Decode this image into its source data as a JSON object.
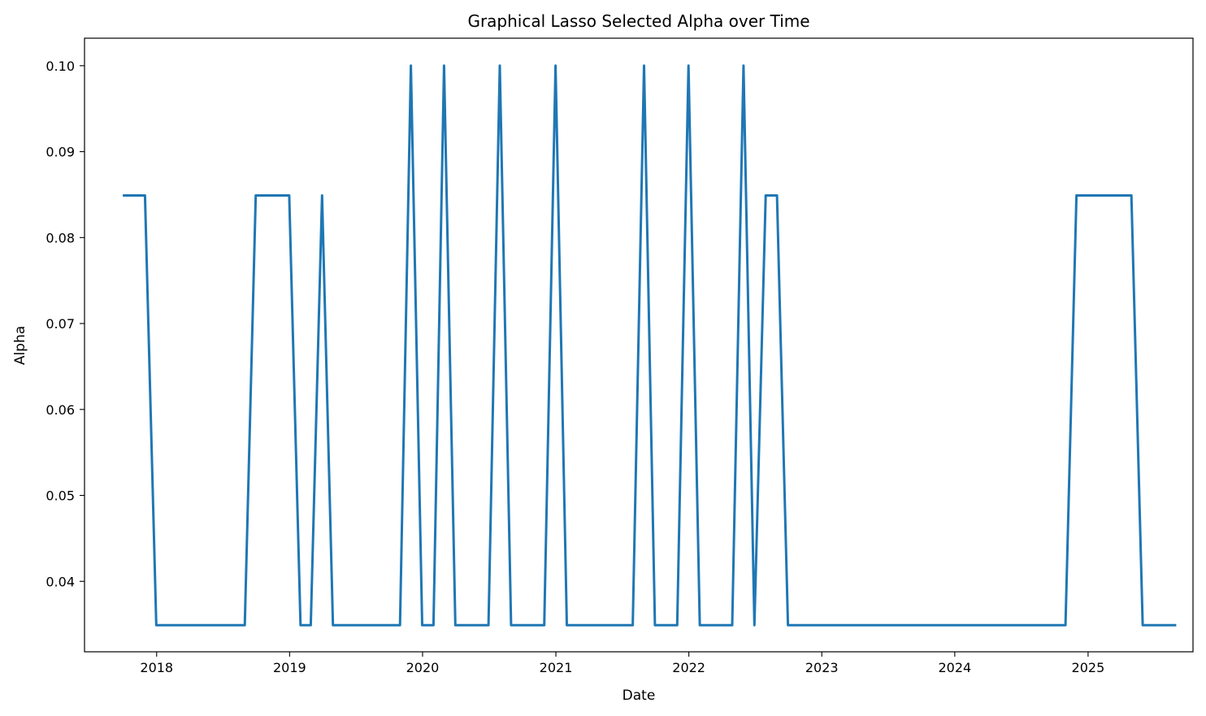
{
  "chart_data": {
    "type": "line",
    "title": "Graphical Lasso Selected Alpha over Time",
    "xlabel": "Date",
    "ylabel": "Alpha",
    "xlim": [
      "2017-06-17",
      "2025-10-16"
    ],
    "ylim": [
      0.0318,
      0.1032
    ],
    "x_ticks": [
      "2018",
      "2019",
      "2020",
      "2021",
      "2022",
      "2023",
      "2024",
      "2025"
    ],
    "y_ticks": [
      "0.04",
      "0.05",
      "0.06",
      "0.07",
      "0.08",
      "0.09",
      "0.10"
    ],
    "grid": false,
    "legend": "none",
    "series_color": "#1f77b4",
    "series": [
      {
        "x": [
          "2017-09-30",
          "2017-10-31",
          "2017-11-30",
          "2017-12-31",
          "2018-01-31",
          "2018-02-28",
          "2018-03-31",
          "2018-04-30",
          "2018-05-31",
          "2018-06-30",
          "2018-07-31",
          "2018-08-31",
          "2018-09-30",
          "2018-10-31",
          "2018-11-30",
          "2018-12-31",
          "2019-01-31",
          "2019-02-28",
          "2019-03-31",
          "2019-04-30",
          "2019-05-31",
          "2019-06-30",
          "2019-07-31",
          "2019-08-31",
          "2019-09-30",
          "2019-10-31",
          "2019-11-30",
          "2019-12-31",
          "2020-01-31",
          "2020-02-29",
          "2020-03-31",
          "2020-04-30",
          "2020-05-31",
          "2020-06-30",
          "2020-07-31",
          "2020-08-31",
          "2020-09-30",
          "2020-10-31",
          "2020-11-30",
          "2020-12-31",
          "2021-01-31",
          "2021-02-28",
          "2021-03-31",
          "2021-04-30",
          "2021-05-31",
          "2021-06-30",
          "2021-07-31",
          "2021-08-31",
          "2021-09-30",
          "2021-10-31",
          "2021-11-30",
          "2021-12-31",
          "2022-01-31",
          "2022-02-28",
          "2022-03-31",
          "2022-04-30",
          "2022-05-31",
          "2022-06-30",
          "2022-07-31",
          "2022-08-31",
          "2022-09-30",
          "2022-10-31",
          "2022-11-30",
          "2022-12-31",
          "2023-01-31",
          "2023-02-28",
          "2023-03-31",
          "2023-04-30",
          "2023-05-31",
          "2023-06-30",
          "2023-07-31",
          "2023-08-31",
          "2023-09-30",
          "2023-10-31",
          "2023-11-30",
          "2023-12-31",
          "2024-01-31",
          "2024-02-29",
          "2024-03-31",
          "2024-04-30",
          "2024-05-31",
          "2024-06-30",
          "2024-07-31",
          "2024-08-31",
          "2024-09-30",
          "2024-10-31",
          "2024-11-30",
          "2024-12-31",
          "2025-01-31",
          "2025-02-28",
          "2025-03-31",
          "2025-04-30",
          "2025-05-31",
          "2025-06-30",
          "2025-07-31",
          "2025-08-31"
        ],
        "values": [
          0.0849,
          0.0849,
          0.0849,
          0.0349,
          0.0349,
          0.0349,
          0.0349,
          0.0349,
          0.0349,
          0.0349,
          0.0349,
          0.0349,
          0.0849,
          0.0849,
          0.0849,
          0.0849,
          0.0349,
          0.0349,
          0.0849,
          0.0349,
          0.0349,
          0.0349,
          0.0349,
          0.0349,
          0.0349,
          0.0349,
          0.1,
          0.0349,
          0.0349,
          0.1,
          0.0349,
          0.0349,
          0.0349,
          0.0349,
          0.1,
          0.0349,
          0.0349,
          0.0349,
          0.0349,
          0.1,
          0.0349,
          0.0349,
          0.0349,
          0.0349,
          0.0349,
          0.0349,
          0.0349,
          0.1,
          0.0349,
          0.0349,
          0.0349,
          0.1,
          0.0349,
          0.0349,
          0.0349,
          0.0349,
          0.1,
          0.0349,
          0.0849,
          0.0849,
          0.0349,
          0.0349,
          0.0349,
          0.0349,
          0.0349,
          0.0349,
          0.0349,
          0.0349,
          0.0349,
          0.0349,
          0.0349,
          0.0349,
          0.0349,
          0.0349,
          0.0349,
          0.0349,
          0.0349,
          0.0349,
          0.0349,
          0.0349,
          0.0349,
          0.0349,
          0.0349,
          0.0349,
          0.0349,
          0.0349,
          0.0849,
          0.0849,
          0.0849,
          0.0849,
          0.0849,
          0.0849,
          0.0349,
          0.0349,
          0.0349,
          0.0349
        ]
      }
    ]
  }
}
